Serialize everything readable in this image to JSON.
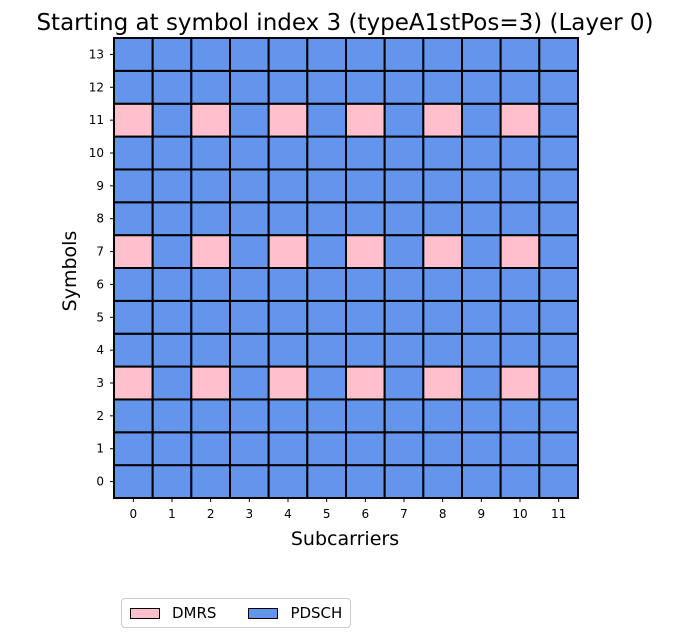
{
  "chart_data": {
    "type": "heatmap",
    "title": "Starting at symbol index 3 (typeA1stPos=3) (Layer 0)",
    "xlabel": "Subcarriers",
    "ylabel": "Symbols",
    "x_ticks": [
      0,
      1,
      2,
      3,
      4,
      5,
      6,
      7,
      8,
      9,
      10,
      11
    ],
    "y_ticks": [
      0,
      1,
      2,
      3,
      4,
      5,
      6,
      7,
      8,
      9,
      10,
      11,
      12,
      13
    ],
    "grid": true,
    "legend_placement": "bottom-left",
    "dmrs_symbols": [
      3,
      7,
      11
    ],
    "dmrs_subcarriers": [
      0,
      2,
      4,
      6,
      8,
      10
    ],
    "legend": [
      {
        "label": "DMRS",
        "color": "#FFC0CB"
      },
      {
        "label": "PDSCH",
        "color": "#6495ED"
      }
    ]
  }
}
